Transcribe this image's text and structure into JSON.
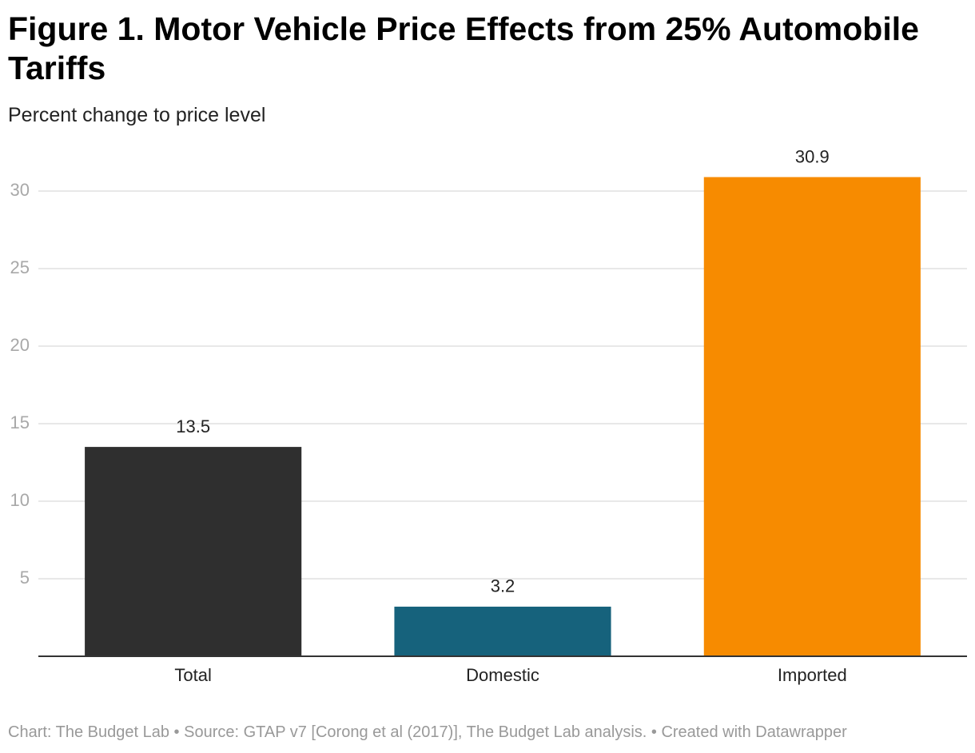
{
  "chart_data": {
    "type": "bar",
    "title": "Figure 1. Motor Vehicle Price Effects from 25% Automobile Tariffs",
    "subtitle": "Percent change to price level",
    "categories": [
      "Total",
      "Domestic",
      "Imported"
    ],
    "values": [
      13.5,
      3.2,
      30.9
    ],
    "colors": [
      "#2f2f2f",
      "#16627c",
      "#f78b00"
    ],
    "ylim": [
      0,
      31
    ],
    "yticks": [
      5,
      10,
      15,
      20,
      25,
      30
    ],
    "grid": true,
    "source": "Chart: The Budget Lab • Source: GTAP v7 [Corong et al (2017)], The Budget Lab analysis. • Created with Datawrapper"
  }
}
